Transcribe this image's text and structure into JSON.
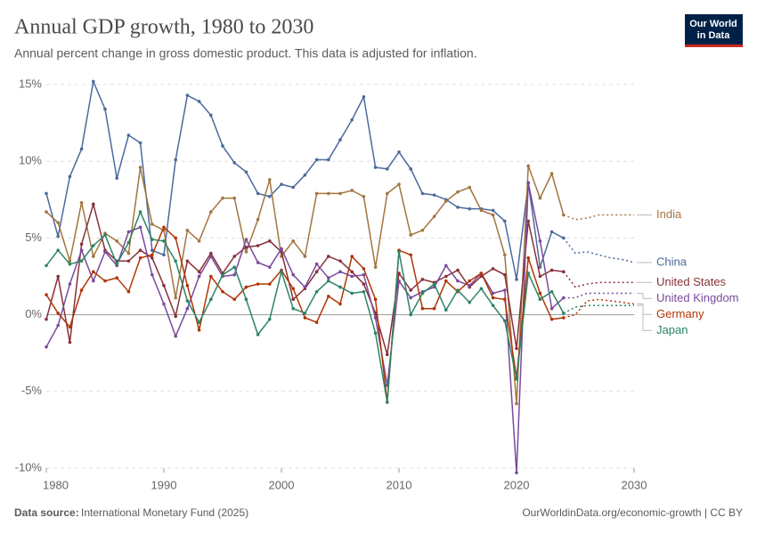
{
  "chart_data": {
    "type": "line",
    "title": "Annual GDP growth, 1980 to 2030",
    "subtitle": "Annual percent change in gross domestic product. This data is adjusted for inflation.",
    "logo": [
      "Our World",
      "in Data"
    ],
    "source_prefix": "Data source:",
    "source": "International Monetary Fund (2025)",
    "footer_right": "OurWorldinData.org/economic-growth | CC BY",
    "x": [
      1980,
      1981,
      1982,
      1983,
      1984,
      1985,
      1986,
      1987,
      1988,
      1989,
      1990,
      1991,
      1992,
      1993,
      1994,
      1995,
      1996,
      1997,
      1998,
      1999,
      2000,
      2001,
      2002,
      2003,
      2004,
      2005,
      2006,
      2007,
      2008,
      2009,
      2010,
      2011,
      2012,
      2013,
      2014,
      2015,
      2016,
      2017,
      2018,
      2019,
      2020,
      2021,
      2022,
      2023,
      2024,
      2025,
      2026,
      2027,
      2028,
      2029,
      2030
    ],
    "xlim": [
      1980,
      2030
    ],
    "xticks": [
      1980,
      1990,
      2000,
      2010,
      2020,
      2030
    ],
    "ylim": [
      -10,
      15
    ],
    "yticks": [
      {
        "value": -10,
        "label": "-10%"
      },
      {
        "value": -5,
        "label": "-5%"
      },
      {
        "value": 0,
        "label": "0%"
      },
      {
        "value": 5,
        "label": "5%"
      },
      {
        "value": 10,
        "label": "10%"
      },
      {
        "value": 15,
        "label": "15%"
      }
    ],
    "grid": true,
    "projected_from": 2024,
    "series": [
      {
        "name": "China",
        "color": "#4c6a9c",
        "values": [
          7.9,
          5.1,
          9.0,
          10.8,
          15.2,
          13.4,
          8.9,
          11.7,
          11.2,
          4.2,
          3.9,
          10.1,
          14.3,
          13.9,
          13.0,
          11.0,
          9.9,
          9.3,
          7.9,
          7.7,
          8.5,
          8.3,
          9.1,
          10.1,
          10.1,
          11.4,
          12.7,
          14.2,
          9.6,
          9.5,
          10.6,
          9.5,
          7.9,
          7.8,
          7.5,
          7.0,
          6.9,
          6.9,
          6.8,
          6.1,
          2.3,
          8.6,
          3.1,
          5.4,
          5.0,
          4.0,
          4.1,
          3.9,
          3.7,
          3.6,
          3.4
        ]
      },
      {
        "name": "India",
        "color": "#a2753f",
        "values": [
          6.7,
          6.0,
          3.5,
          7.3,
          3.8,
          5.3,
          4.8,
          4.0,
          9.6,
          5.9,
          5.5,
          1.1,
          5.5,
          4.8,
          6.7,
          7.6,
          7.6,
          4.1,
          6.2,
          8.8,
          3.8,
          4.8,
          3.8,
          7.9,
          7.9,
          7.9,
          8.1,
          7.7,
          3.1,
          7.9,
          8.5,
          5.2,
          5.5,
          6.4,
          7.4,
          8.0,
          8.3,
          6.8,
          6.5,
          3.9,
          -5.8,
          9.7,
          7.6,
          9.2,
          6.5,
          6.2,
          6.3,
          6.5,
          6.5,
          6.5,
          6.5
        ]
      },
      {
        "name": "United States",
        "color": "#883039",
        "values": [
          -0.3,
          2.5,
          -1.8,
          4.6,
          7.2,
          4.2,
          3.5,
          3.5,
          4.2,
          3.7,
          1.9,
          -0.1,
          3.5,
          2.8,
          4.0,
          2.7,
          3.8,
          4.4,
          4.5,
          4.8,
          4.1,
          1.0,
          1.7,
          2.8,
          3.8,
          3.5,
          2.8,
          2.0,
          0.1,
          -2.6,
          2.7,
          1.6,
          2.3,
          2.1,
          2.5,
          2.9,
          1.8,
          2.5,
          3.0,
          2.6,
          -2.2,
          6.1,
          2.5,
          2.9,
          2.8,
          1.8,
          2.0,
          2.1,
          2.1,
          2.1,
          2.1
        ]
      },
      {
        "name": "United Kingdom",
        "color": "#7b4a9b",
        "values": [
          -2.1,
          -0.7,
          2.0,
          4.2,
          2.2,
          4.1,
          3.2,
          5.4,
          5.7,
          2.6,
          0.7,
          -1.4,
          0.4,
          2.5,
          3.8,
          2.5,
          2.6,
          4.9,
          3.4,
          3.1,
          4.3,
          2.6,
          1.8,
          3.3,
          2.4,
          2.8,
          2.5,
          2.6,
          -0.2,
          -4.6,
          2.2,
          1.1,
          1.5,
          1.8,
          3.2,
          2.2,
          1.9,
          2.7,
          1.4,
          1.6,
          -10.3,
          8.6,
          4.8,
          0.4,
          1.1,
          1.1,
          1.4,
          1.4,
          1.4,
          1.4,
          1.4
        ]
      },
      {
        "name": "Germany",
        "color": "#b13507",
        "values": [
          1.3,
          0.1,
          -0.8,
          1.6,
          2.8,
          2.2,
          2.4,
          1.5,
          3.7,
          3.9,
          5.7,
          5.0,
          1.9,
          -1.0,
          2.5,
          1.5,
          1.0,
          1.8,
          2.0,
          2.0,
          2.9,
          1.7,
          -0.2,
          -0.5,
          1.2,
          0.7,
          3.8,
          3.0,
          1.0,
          -5.7,
          4.2,
          3.9,
          0.4,
          0.4,
          2.2,
          1.5,
          2.2,
          2.7,
          1.1,
          1.0,
          -4.1,
          3.7,
          1.4,
          -0.3,
          -0.2,
          0.0,
          0.9,
          1.0,
          0.9,
          0.8,
          0.7
        ]
      },
      {
        "name": "Japan",
        "color": "#2c8465",
        "values": [
          3.2,
          4.2,
          3.3,
          3.5,
          4.5,
          5.2,
          3.3,
          4.7,
          6.7,
          4.9,
          4.8,
          3.5,
          0.9,
          -0.5,
          1.0,
          2.6,
          3.1,
          1.0,
          -1.3,
          -0.3,
          2.8,
          0.4,
          0.1,
          1.5,
          2.2,
          1.8,
          1.4,
          1.5,
          -1.2,
          -5.7,
          4.1,
          0.0,
          1.4,
          2.0,
          0.3,
          1.6,
          0.8,
          1.7,
          0.6,
          -0.4,
          -4.2,
          2.7,
          1.0,
          1.5,
          0.1,
          0.5,
          0.6,
          0.6,
          0.6,
          0.6,
          0.6
        ]
      }
    ]
  }
}
